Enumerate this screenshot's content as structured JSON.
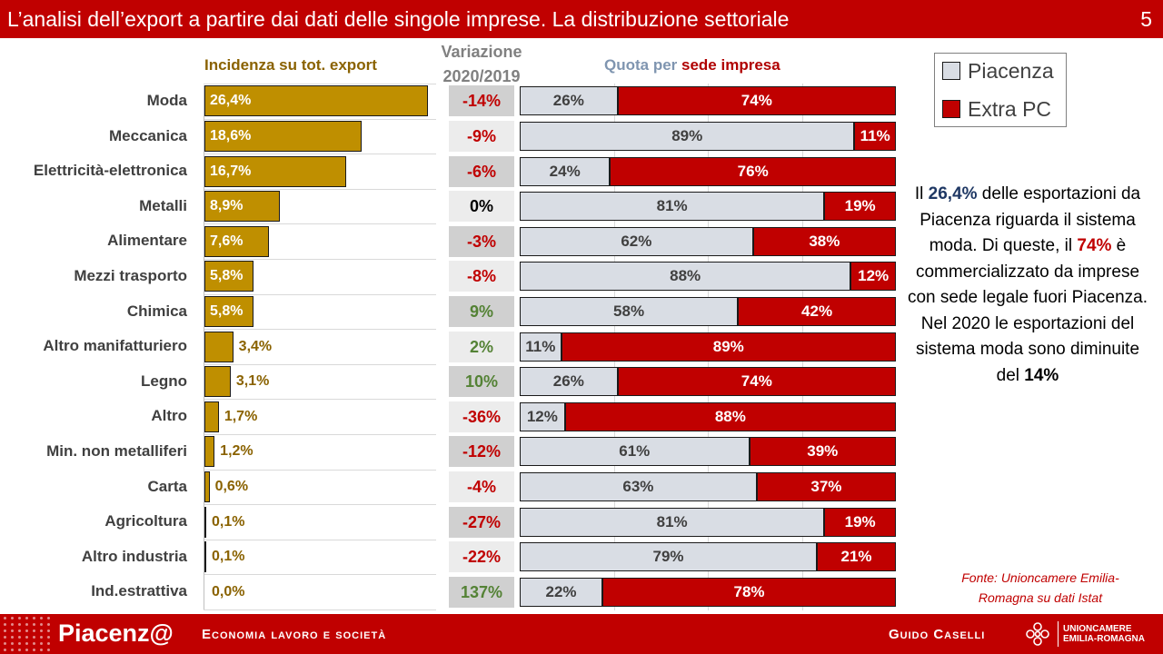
{
  "header": {
    "title": "L’analisi dell’export a partire dai dati delle singole imprese. La distribuzione settoriale",
    "page_number": "5"
  },
  "colors": {
    "brand_red": "#c00000",
    "bar_gold": "#bf8f00",
    "piacenza_grey": "#d9dde4",
    "positive_green": "#548235",
    "negative_red": "#c00000"
  },
  "chart_data": [
    {
      "type": "bar",
      "orientation": "horizontal",
      "title": "Incidenza su tot. export",
      "categories": [
        "Moda",
        "Meccanica",
        "Elettricità-elettronica",
        "Metalli",
        "Alimentare",
        "Mezzi trasporto",
        "Chimica",
        "Altro manifatturiero",
        "Legno",
        "Altro",
        "Min. non metalliferi",
        "Carta",
        "Agricoltura",
        "Altro industria",
        "Ind.estrattiva"
      ],
      "values": [
        26.4,
        18.6,
        16.7,
        8.9,
        7.6,
        5.8,
        5.8,
        3.4,
        3.1,
        1.7,
        1.2,
        0.6,
        0.1,
        0.1,
        0.0
      ],
      "labels": [
        "26,4%",
        "18,6%",
        "16,7%",
        "8,9%",
        "7,6%",
        "5,8%",
        "5,8%",
        "3,4%",
        "3,1%",
        "1,7%",
        "1,2%",
        "0,6%",
        "0,1%",
        "0,1%",
        "0,0%"
      ],
      "xlim": [
        0,
        28
      ]
    },
    {
      "type": "table",
      "title_line1": "Variazione",
      "title_line2": "2020/2019",
      "values": [
        -14,
        -9,
        -6,
        0,
        -3,
        -8,
        9,
        2,
        10,
        -36,
        -12,
        -4,
        -27,
        -22,
        137
      ],
      "labels": [
        "-14%",
        "-9%",
        "-6%",
        "0%",
        "-3%",
        "-8%",
        "9%",
        "2%",
        "10%",
        "-36%",
        "-12%",
        "-4%",
        "-27%",
        "-22%",
        "137%"
      ]
    },
    {
      "type": "bar",
      "orientation": "horizontal",
      "stacked": true,
      "title_part1": "Quota per ",
      "title_part2": "sede impresa",
      "series": [
        {
          "name": "Piacenza",
          "values": [
            26,
            89,
            24,
            81,
            62,
            88,
            58,
            11,
            26,
            12,
            61,
            63,
            81,
            79,
            22
          ]
        },
        {
          "name": "Extra PC",
          "values": [
            74,
            11,
            76,
            19,
            38,
            12,
            42,
            89,
            74,
            88,
            39,
            37,
            19,
            21,
            78
          ]
        }
      ],
      "xlim": [
        0,
        100
      ]
    }
  ],
  "legend": {
    "items": [
      "Piacenza",
      "Extra PC"
    ],
    "position": "top-right"
  },
  "note": {
    "p1": "Il ",
    "v1": "26,4%",
    "p2": " delle esportazioni da Piacenza riguarda il sistema moda. Di queste, il ",
    "v2": "74%",
    "p3": " è commercializzato da imprese con sede legale fuori Piacenza. Nel 2020 le esportazioni del sistema moda sono diminuite del ",
    "v3": "14%"
  },
  "source": {
    "line1": "Fonte: Unioncamere Emilia-",
    "line2": "Romagna su dati Istat"
  },
  "footer": {
    "brand": "Piacenz@",
    "tagline": "Economia lavoro e società",
    "author": "Guido Caselli",
    "org_line1": "UNIONCAMERE",
    "org_line2": "EMILIA-ROMAGNA"
  }
}
